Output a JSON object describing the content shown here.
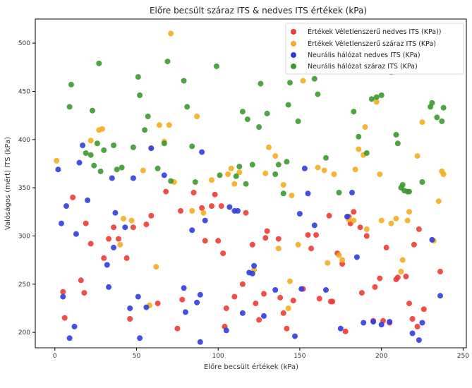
{
  "chart_data": {
    "type": "scatter",
    "title": "Előre becsült száraz ITS & nedves ITS értékek (kPa)",
    "xlabel": "Előre becsült értékek (kPa)",
    "ylabel": "Valóságos (mért) ITS (kPa)",
    "xlim": [
      -12,
      252
    ],
    "ylim": [
      184,
      525
    ],
    "xticks": [
      0,
      50,
      100,
      150,
      200,
      250
    ],
    "yticks": [
      200,
      250,
      300,
      350,
      400,
      450,
      500
    ],
    "grid": false,
    "legend_position": "top-right",
    "series": [
      {
        "name": "Értékek Véletlenszerű nedves ITS (KPa))",
        "color": "#ef3b36",
        "points": [
          [
            5,
            242
          ],
          [
            6,
            215
          ],
          [
            11,
            340
          ],
          [
            16,
            254
          ],
          [
            18,
            241
          ],
          [
            19,
            313
          ],
          [
            22,
            292
          ],
          [
            30,
            277
          ],
          [
            33,
            297
          ],
          [
            36,
            309
          ],
          [
            39,
            297
          ],
          [
            44,
            277
          ],
          [
            46,
            214
          ],
          [
            48,
            309
          ],
          [
            56,
            312
          ],
          [
            59,
            321
          ],
          [
            63,
            230
          ],
          [
            68,
            346
          ],
          [
            75,
            204
          ],
          [
            77,
            326
          ],
          [
            78,
            234
          ],
          [
            85,
            345
          ],
          [
            90,
            329
          ],
          [
            92,
            295
          ],
          [
            96,
            331
          ],
          [
            98,
            343
          ],
          [
            100,
            295
          ],
          [
            102,
            331
          ],
          [
            103,
            282
          ],
          [
            104,
            206
          ],
          [
            105,
            225
          ],
          [
            110,
            237
          ],
          [
            115,
            250
          ],
          [
            117,
            324
          ],
          [
            121,
            291
          ],
          [
            123,
            230
          ],
          [
            125,
            213
          ],
          [
            128,
            240
          ],
          [
            129,
            298
          ],
          [
            130,
            305
          ],
          [
            137,
            297
          ],
          [
            138,
            236
          ],
          [
            140,
            220
          ],
          [
            142,
            204
          ],
          [
            146,
            233
          ],
          [
            152,
            245
          ],
          [
            155,
            301
          ],
          [
            157,
            287
          ],
          [
            160,
            301
          ],
          [
            162,
            235
          ],
          [
            168,
            321
          ],
          [
            169,
            232
          ],
          [
            170,
            232
          ],
          [
            173,
            282
          ],
          [
            176,
            271
          ],
          [
            178,
            201
          ],
          [
            180,
            320
          ],
          [
            181,
            313
          ],
          [
            183,
            325
          ],
          [
            187,
            309
          ],
          [
            188,
            241
          ],
          [
            191,
            300
          ],
          [
            195,
            212
          ],
          [
            196,
            247
          ],
          [
            199,
            256
          ],
          [
            201,
            212
          ],
          [
            203,
            288
          ],
          [
            205,
            210
          ],
          [
            209,
            255
          ],
          [
            210,
            257
          ],
          [
            215,
            258
          ],
          [
            217,
            230
          ],
          [
            219,
            214
          ],
          [
            220,
            291
          ],
          [
            222,
            206
          ],
          [
            223,
            307
          ],
          [
            226,
            224
          ],
          [
            236,
            263
          ]
        ]
      },
      {
        "name": "Értékek Véletlenszerű száraz ITS (KPa)",
        "color": "#f5ad1f",
        "points": [
          [
            1,
            378
          ],
          [
            22,
            399
          ],
          [
            27,
            410
          ],
          [
            29,
            411
          ],
          [
            40,
            291
          ],
          [
            42,
            318
          ],
          [
            47,
            316
          ],
          [
            54,
            368
          ],
          [
            58,
            228
          ],
          [
            59,
            391
          ],
          [
            62,
            268
          ],
          [
            64,
            415
          ],
          [
            67,
            398
          ],
          [
            70,
            415
          ],
          [
            71,
            510
          ],
          [
            73,
            356
          ],
          [
            84,
            326
          ],
          [
            87,
            424
          ],
          [
            91,
            324
          ],
          [
            96,
            358
          ],
          [
            106,
            364
          ],
          [
            108,
            370
          ],
          [
            110,
            354
          ],
          [
            113,
            366
          ],
          [
            122,
            265
          ],
          [
            129,
            365
          ],
          [
            131,
            392
          ],
          [
            135,
            383
          ],
          [
            137,
            287
          ],
          [
            140,
            353
          ],
          [
            143,
            225
          ],
          [
            144,
            253
          ],
          [
            145,
            342
          ],
          [
            149,
            291
          ],
          [
            152,
            461
          ],
          [
            161,
            371
          ],
          [
            165,
            368
          ],
          [
            167,
            272
          ],
          [
            171,
            364
          ],
          [
            174,
            280
          ],
          [
            176,
            275
          ],
          [
            180,
            317
          ],
          [
            183,
            316
          ],
          [
            184,
            369
          ],
          [
            186,
            390
          ],
          [
            189,
            384
          ],
          [
            190,
            413
          ],
          [
            191,
            307
          ],
          [
            197,
            439
          ],
          [
            199,
            364
          ],
          [
            200,
            316
          ],
          [
            206,
            313
          ],
          [
            209,
            318
          ],
          [
            212,
            263
          ],
          [
            213,
            275
          ],
          [
            216,
            316
          ],
          [
            217,
            325
          ],
          [
            222,
            383
          ],
          [
            225,
            418
          ],
          [
            232,
            295
          ],
          [
            235,
            336
          ],
          [
            237,
            367
          ],
          [
            238,
            364
          ]
        ]
      },
      {
        "name": "Neurális hálózat nedves ITS (KPa)",
        "color": "#2f3de0",
        "points": [
          [
            2,
            369
          ],
          [
            4,
            313
          ],
          [
            5,
            237
          ],
          [
            7,
            331
          ],
          [
            9,
            194
          ],
          [
            12,
            206
          ],
          [
            13,
            302
          ],
          [
            15,
            376
          ],
          [
            17,
            394
          ],
          [
            20,
            337
          ],
          [
            32,
            270
          ],
          [
            33,
            247
          ],
          [
            35,
            360
          ],
          [
            36,
            288
          ],
          [
            37,
            324
          ],
          [
            43,
            309
          ],
          [
            46,
            225
          ],
          [
            48,
            360
          ],
          [
            51,
            237
          ],
          [
            52,
            194
          ],
          [
            56,
            226
          ],
          [
            59,
            391
          ],
          [
            67,
            363
          ],
          [
            79,
            246
          ],
          [
            80,
            221
          ],
          [
            84,
            306
          ],
          [
            87,
            231
          ],
          [
            89,
            239
          ],
          [
            89,
            190
          ],
          [
            90,
            387
          ],
          [
            92,
            316
          ],
          [
            105,
            202
          ],
          [
            107,
            330
          ],
          [
            110,
            326
          ],
          [
            112,
            326
          ],
          [
            115,
            220
          ],
          [
            119,
            262
          ],
          [
            121,
            261
          ],
          [
            122,
            269
          ],
          [
            128,
            217
          ],
          [
            135,
            244
          ],
          [
            147,
            196
          ],
          [
            150,
            323
          ],
          [
            151,
            245
          ],
          [
            153,
            370
          ],
          [
            155,
            344
          ],
          [
            159,
            311
          ],
          [
            166,
            244
          ],
          [
            175,
            204
          ],
          [
            179,
            320
          ],
          [
            182,
            345
          ],
          [
            185,
            278
          ],
          [
            189,
            210
          ],
          [
            195,
            211
          ],
          [
            200,
            208
          ],
          [
            205,
            211
          ],
          [
            219,
            199
          ],
          [
            223,
            192
          ],
          [
            225,
            210
          ],
          [
            231,
            296
          ],
          [
            236,
            238
          ]
        ]
      },
      {
        "name": "Neurális hálózat száraz ITS (KPa)",
        "color": "#3a9a2f",
        "points": [
          [
            9,
            434
          ],
          [
            10,
            457
          ],
          [
            19,
            386
          ],
          [
            22,
            384
          ],
          [
            23,
            430
          ],
          [
            24,
            373
          ],
          [
            26,
            396
          ],
          [
            27,
            479
          ],
          [
            28,
            367
          ],
          [
            30,
            389
          ],
          [
            36,
            394
          ],
          [
            38,
            369
          ],
          [
            41,
            371
          ],
          [
            48,
            392
          ],
          [
            51,
            465
          ],
          [
            52,
            446
          ],
          [
            55,
            410
          ],
          [
            57,
            424
          ],
          [
            63,
            370
          ],
          [
            67,
            396
          ],
          [
            69,
            481
          ],
          [
            71,
            357
          ],
          [
            79,
            461
          ],
          [
            81,
            434
          ],
          [
            84,
            393
          ],
          [
            86,
            356
          ],
          [
            99,
            476
          ],
          [
            101,
            363
          ],
          [
            111,
            362
          ],
          [
            113,
            372
          ],
          [
            115,
            429
          ],
          [
            117,
            354
          ],
          [
            118,
            421
          ],
          [
            121,
            374
          ],
          [
            125,
            413
          ],
          [
            126,
            458
          ],
          [
            130,
            427
          ],
          [
            135,
            364
          ],
          [
            137,
            374
          ],
          [
            140,
            344
          ],
          [
            142,
            377
          ],
          [
            143,
            436
          ],
          [
            144,
            459
          ],
          [
            149,
            419
          ],
          [
            159,
            463
          ],
          [
            161,
            447
          ],
          [
            166,
            381
          ],
          [
            174,
            345
          ],
          [
            183,
            429
          ],
          [
            186,
            403
          ],
          [
            191,
            386
          ],
          [
            194,
            442
          ],
          [
            197,
            444
          ],
          [
            200,
            446
          ],
          [
            204,
            486
          ],
          [
            206,
            470
          ],
          [
            209,
            405
          ],
          [
            210,
            396
          ],
          [
            212,
            350
          ],
          [
            213,
            353
          ],
          [
            214,
            347
          ],
          [
            216,
            346
          ],
          [
            217,
            346
          ],
          [
            225,
            356
          ],
          [
            230,
            434
          ],
          [
            231,
            438
          ],
          [
            234,
            423
          ],
          [
            237,
            419
          ],
          [
            238,
            433
          ]
        ]
      }
    ]
  }
}
